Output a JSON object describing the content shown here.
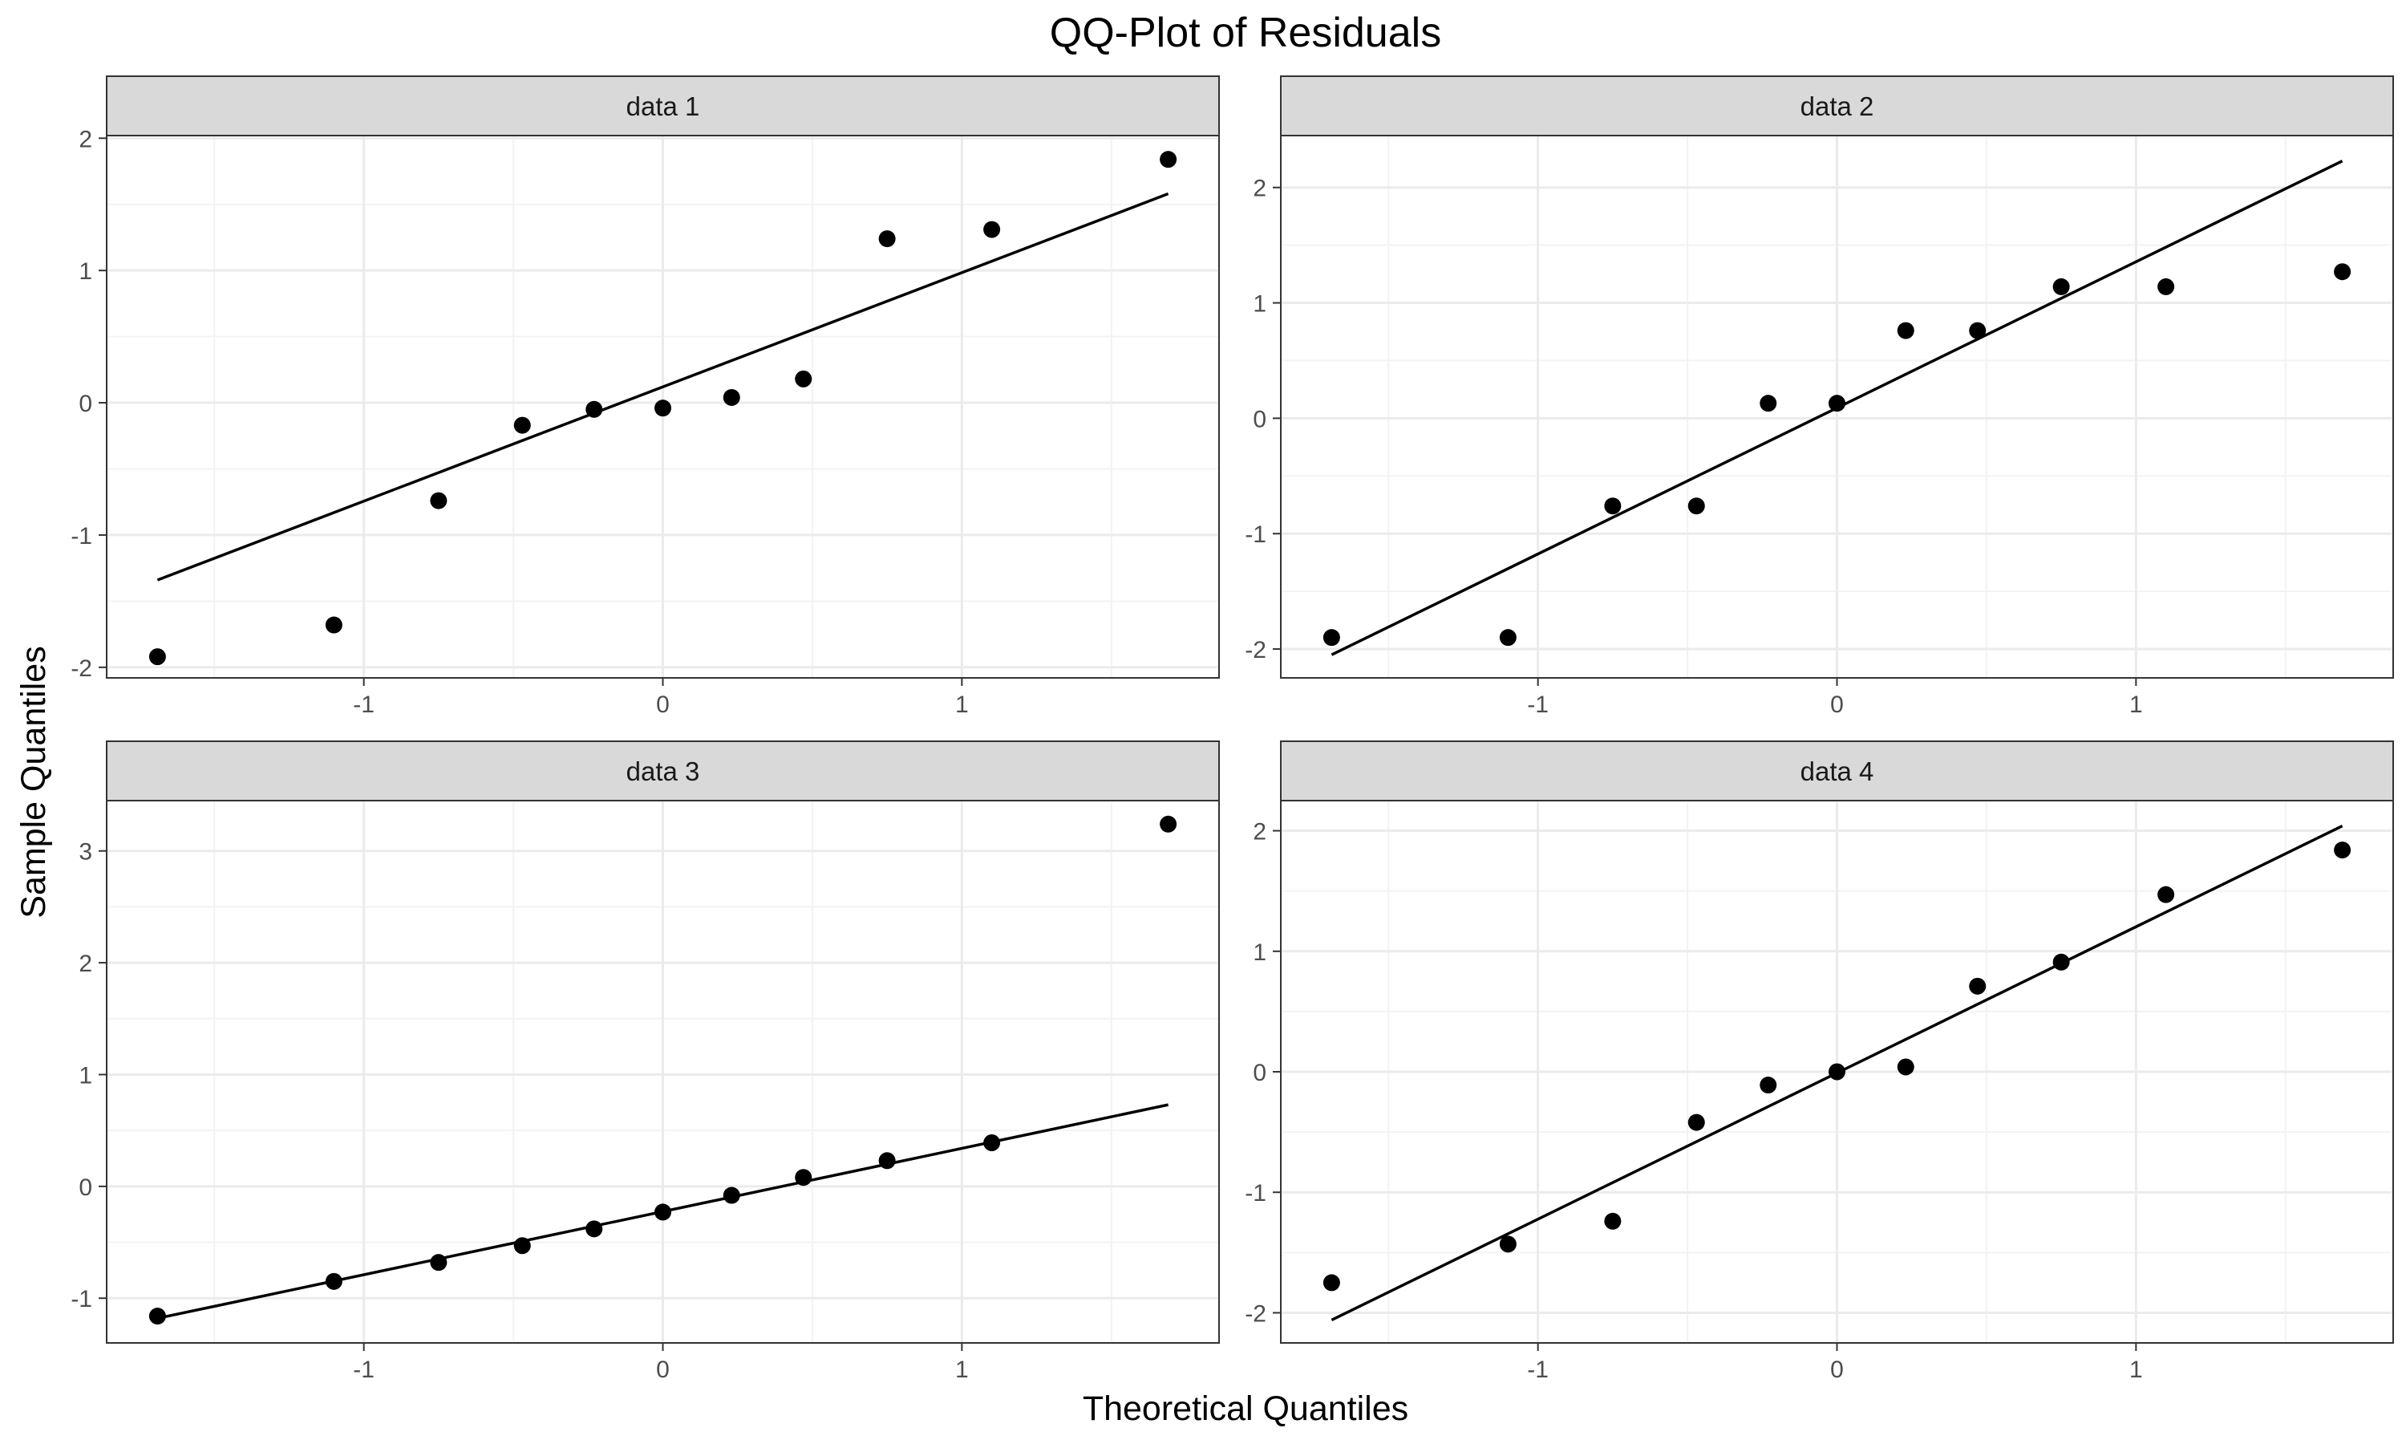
{
  "title": "QQ-Plot of Residuals",
  "xlabel": "Theoretical Quantiles",
  "ylabel": "Sample Quantiles",
  "colors": {
    "point": "#000000",
    "line": "#000000",
    "strip_fill": "#d9d9d9",
    "grid_major": "#ebebeb",
    "panel_border": "#333333",
    "tick_text": "#4d4d4d"
  },
  "chart_data": [
    {
      "type": "scatter",
      "panel": "data 1",
      "x": [
        -1.69,
        -1.1,
        -0.75,
        -0.47,
        -0.23,
        0.0,
        0.23,
        0.47,
        0.75,
        1.1,
        1.69
      ],
      "y": [
        -1.92,
        -1.68,
        -0.74,
        -0.17,
        -0.05,
        -0.04,
        0.04,
        0.18,
        1.24,
        1.31,
        1.84
      ],
      "line": {
        "x": [
          -1.69,
          1.69
        ],
        "y": [
          -1.34,
          1.58
        ]
      },
      "xlim": [
        -1.86,
        1.86
      ],
      "ylim": [
        -2.08,
        2.02
      ],
      "xticks": [
        -1,
        0,
        1
      ],
      "yticks": [
        -2,
        -1,
        0,
        1,
        2
      ],
      "grid": true
    },
    {
      "type": "scatter",
      "panel": "data 2",
      "x": [
        -1.69,
        -1.1,
        -0.75,
        -0.47,
        -0.23,
        0.0,
        0.23,
        0.47,
        0.75,
        1.1,
        1.69
      ],
      "y": [
        -1.9,
        -1.9,
        -0.76,
        -0.76,
        0.13,
        0.13,
        0.76,
        0.76,
        1.14,
        1.14,
        1.27
      ],
      "line": {
        "x": [
          -1.69,
          1.69
        ],
        "y": [
          -2.05,
          2.23
        ]
      },
      "xlim": [
        -1.86,
        1.86
      ],
      "ylim": [
        -2.25,
        2.45
      ],
      "xticks": [
        -1,
        0,
        1
      ],
      "yticks": [
        -2,
        -1,
        0,
        1,
        2
      ],
      "grid": true
    },
    {
      "type": "scatter",
      "panel": "data 3",
      "x": [
        -1.69,
        -1.1,
        -0.75,
        -0.47,
        -0.23,
        0.0,
        0.23,
        0.47,
        0.75,
        1.1,
        1.69
      ],
      "y": [
        -1.16,
        -0.85,
        -0.68,
        -0.53,
        -0.38,
        -0.23,
        -0.08,
        0.08,
        0.23,
        0.39,
        3.24
      ],
      "line": {
        "x": [
          -1.69,
          1.69
        ],
        "y": [
          -1.18,
          0.73
        ]
      },
      "xlim": [
        -1.86,
        1.86
      ],
      "ylim": [
        -1.4,
        3.45
      ],
      "xticks": [
        -1,
        0,
        1
      ],
      "yticks": [
        -1,
        0,
        1,
        2,
        3
      ],
      "grid": true
    },
    {
      "type": "scatter",
      "panel": "data 4",
      "x": [
        -1.69,
        -1.1,
        -0.75,
        -0.47,
        -0.23,
        0.0,
        0.23,
        0.47,
        0.75,
        1.1,
        1.69
      ],
      "y": [
        -1.75,
        -1.43,
        -1.24,
        -0.42,
        -0.11,
        0.0,
        0.04,
        0.71,
        0.91,
        1.47,
        1.84
      ],
      "line": {
        "x": [
          -1.69,
          1.69
        ],
        "y": [
          -2.06,
          2.04
        ]
      },
      "xlim": [
        -1.86,
        1.86
      ],
      "ylim": [
        -2.25,
        2.25
      ],
      "xticks": [
        -1,
        0,
        1
      ],
      "yticks": [
        -2,
        -1,
        0,
        1,
        2
      ],
      "grid": true
    }
  ]
}
